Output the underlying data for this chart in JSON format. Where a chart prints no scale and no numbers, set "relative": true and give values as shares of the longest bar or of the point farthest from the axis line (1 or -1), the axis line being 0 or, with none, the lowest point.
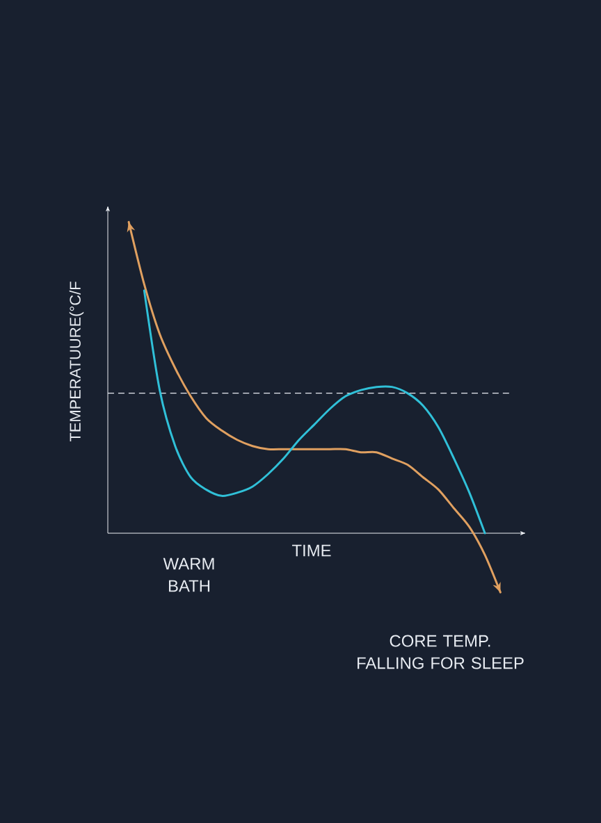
{
  "chart_data": {
    "type": "line",
    "relative": true,
    "xlabel": "TIME",
    "ylabel": "TEMPERATUURE(°C/F",
    "categories": [
      null,
      null,
      null,
      null,
      null,
      null,
      null,
      null,
      null,
      null,
      null,
      null,
      null,
      null,
      null,
      null,
      null,
      null,
      null,
      null,
      null,
      null,
      null,
      null,
      null
    ],
    "series": [
      {
        "color": "#e0a060",
        "values": [
          1.0,
          0.8,
          0.64,
          0.53,
          0.44,
          0.37,
          0.33,
          0.3,
          0.28,
          0.27,
          0.27,
          0.27,
          0.27,
          0.27,
          0.27,
          0.26,
          0.26,
          0.24,
          0.22,
          0.18,
          0.14,
          0.08,
          0.02,
          -0.07,
          -0.19
        ]
      },
      {
        "color": "#30c0d8",
        "values": [
          null,
          0.78,
          0.46,
          0.28,
          0.18,
          0.14,
          0.12,
          0.13,
          0.15,
          0.19,
          0.24,
          0.3,
          0.35,
          0.4,
          0.44,
          0.46,
          0.47,
          0.47,
          0.45,
          0.41,
          0.34,
          0.24,
          0.13,
          0.0,
          null
        ]
      }
    ],
    "ref_lines": [
      {
        "axis": "y",
        "value": 0.45,
        "line_style": "dashed",
        "color": "#e8ecf2"
      }
    ],
    "marker": "none",
    "line_style": "solid",
    "annotations": [
      "WARM BATH",
      "CORE TEMP. FALLING FOR SLEEP"
    ]
  }
}
